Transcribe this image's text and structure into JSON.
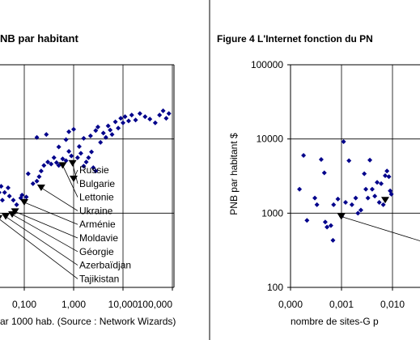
{
  "chart_data": [
    {
      "type": "scatter",
      "title_fragment": "NB par habitant",
      "xlabel_fragment": "ar 1000 hab. (Source : Network Wizards)",
      "x_scale": "log",
      "xlim": [
        0.01,
        100
      ],
      "x_ticks": [
        {
          "v": 0.1,
          "label": "0,100"
        },
        {
          "v": 1,
          "label": "1,000"
        },
        {
          "v": 10,
          "label": "10,000"
        },
        {
          "v": 100,
          "label": "100,000"
        }
      ],
      "y_scale": "log",
      "ylim": [
        100,
        100000
      ],
      "grid": true,
      "marker_color": "#00008b",
      "highlight_color": "#000000",
      "points": [
        [
          0.013,
          2200
        ],
        [
          0.016,
          2500
        ],
        [
          0.019,
          1800
        ],
        [
          0.022,
          2100
        ],
        [
          0.026,
          2400
        ],
        [
          0.028,
          1600
        ],
        [
          0.031,
          1900
        ],
        [
          0.034,
          2300
        ],
        [
          0.015,
          1400
        ],
        [
          0.024,
          1300
        ],
        [
          0.036,
          1500
        ],
        [
          0.04,
          1900
        ],
        [
          0.047,
          2200
        ],
        [
          0.05,
          1700
        ],
        [
          0.06,
          1500
        ],
        [
          0.07,
          1300
        ],
        [
          0.085,
          1600
        ],
        [
          0.09,
          1750
        ],
        [
          0.11,
          1650
        ],
        [
          0.12,
          3400
        ],
        [
          0.15,
          2500
        ],
        [
          0.18,
          2700
        ],
        [
          0.2,
          3100
        ],
        [
          0.22,
          3700
        ],
        [
          0.25,
          4400
        ],
        [
          0.3,
          4900
        ],
        [
          0.35,
          4600
        ],
        [
          0.4,
          5600
        ],
        [
          0.45,
          4800
        ],
        [
          0.5,
          4400
        ],
        [
          0.6,
          5400
        ],
        [
          0.7,
          5100
        ],
        [
          0.8,
          6800
        ],
        [
          0.9,
          5900
        ],
        [
          1.2,
          5600
        ],
        [
          1.4,
          6400
        ],
        [
          1.6,
          4300
        ],
        [
          1.8,
          4900
        ],
        [
          2.0,
          5600
        ],
        [
          2.3,
          6700
        ],
        [
          2.5,
          4100
        ],
        [
          2.8,
          3700
        ],
        [
          0.18,
          10500
        ],
        [
          0.28,
          11500
        ],
        [
          0.5,
          7800
        ],
        [
          0.7,
          9800
        ],
        [
          0.8,
          12500
        ],
        [
          1.0,
          13500
        ],
        [
          1.3,
          7900
        ],
        [
          1.6,
          10200
        ],
        [
          2.2,
          11000
        ],
        [
          2.8,
          13000
        ],
        [
          3.1,
          14500
        ],
        [
          3.5,
          9000
        ],
        [
          4.0,
          12000
        ],
        [
          4.5,
          10500
        ],
        [
          5.0,
          15000
        ],
        [
          5.5,
          13200
        ],
        [
          6.0,
          11500
        ],
        [
          7.0,
          17000
        ],
        [
          8.0,
          14000
        ],
        [
          9.0,
          19000
        ],
        [
          10.0,
          16500
        ],
        [
          11.0,
          20000
        ],
        [
          13.0,
          17500
        ],
        [
          15.0,
          21000
        ],
        [
          18.0,
          18000
        ],
        [
          22.0,
          22000
        ],
        [
          28.0,
          20000
        ],
        [
          35.0,
          18500
        ],
        [
          45.0,
          16500
        ],
        [
          55.0,
          21000
        ],
        [
          65.0,
          24000
        ],
        [
          75.0,
          19000
        ],
        [
          85.0,
          22000
        ]
      ],
      "highlighted": [
        {
          "label": "Russie",
          "x": 1.0,
          "y": 2900
        },
        {
          "label": "Bulgarie",
          "x": 0.95,
          "y": 4700
        },
        {
          "label": "Lettonie",
          "x": 0.6,
          "y": 4400
        },
        {
          "label": "Ukraine",
          "x": 0.22,
          "y": 2200
        },
        {
          "label": "Arménie",
          "x": 0.1,
          "y": 1400
        },
        {
          "label": "Moldavie",
          "x": 0.065,
          "y": 1050
        },
        {
          "label": "Géorgie",
          "x": 0.057,
          "y": 960
        },
        {
          "label": "Azerbaïdjan",
          "x": 0.042,
          "y": 900
        },
        {
          "label": "Tajikistan",
          "x": 0.03,
          "y": 850
        }
      ]
    },
    {
      "type": "scatter",
      "title": "Figure 4 L'Internet fonction du PN",
      "ylabel": "PNB par habitant $",
      "xlabel_fragment": "nombre de sites-G p",
      "x_scale": "log",
      "xlim": [
        0.0001,
        0.01
      ],
      "x_ticks": [
        {
          "v": 0.0001,
          "label": "0,000"
        },
        {
          "v": 0.001,
          "label": "0,001"
        },
        {
          "v": 0.01,
          "label": "0,010"
        }
      ],
      "y_scale": "log",
      "ylim": [
        100,
        100000
      ],
      "y_ticks": [
        {
          "v": 100,
          "label": "100"
        },
        {
          "v": 1000,
          "label": "1000"
        },
        {
          "v": 10000,
          "label": "10000"
        },
        {
          "v": 100000,
          "label": "100000"
        }
      ],
      "grid": true,
      "marker_color": "#00008b",
      "highlight_color": "#000000",
      "points": [
        [
          0.00015,
          2100
        ],
        [
          0.00018,
          6000
        ],
        [
          0.00021,
          800
        ],
        [
          0.0003,
          1600
        ],
        [
          0.00033,
          1300
        ],
        [
          0.0004,
          5300
        ],
        [
          0.00046,
          3500
        ],
        [
          0.00048,
          760
        ],
        [
          0.00052,
          650
        ],
        [
          0.00062,
          680
        ],
        [
          0.00068,
          430
        ],
        [
          0.0007,
          1300
        ],
        [
          0.00085,
          1550
        ],
        [
          0.001,
          900
        ],
        [
          0.0011,
          9200
        ],
        [
          0.0012,
          1400
        ],
        [
          0.0014,
          5100
        ],
        [
          0.0016,
          1300
        ],
        [
          0.0019,
          1600
        ],
        [
          0.0021,
          1000
        ],
        [
          0.0024,
          1100
        ],
        [
          0.0028,
          3400
        ],
        [
          0.003,
          2100
        ],
        [
          0.0033,
          1600
        ],
        [
          0.0036,
          5200
        ],
        [
          0.004,
          2100
        ],
        [
          0.0045,
          1700
        ],
        [
          0.005,
          2600
        ],
        [
          0.0055,
          1400
        ],
        [
          0.006,
          2500
        ],
        [
          0.0066,
          1300
        ],
        [
          0.0072,
          3200
        ],
        [
          0.0078,
          3700
        ],
        [
          0.0085,
          3100
        ],
        [
          0.009,
          2000
        ],
        [
          0.0095,
          1800
        ]
      ],
      "highlighted": [
        {
          "label": "",
          "x": 0.00099,
          "y": 900
        },
        {
          "label": "",
          "x": 0.0072,
          "y": 1500
        }
      ]
    }
  ]
}
